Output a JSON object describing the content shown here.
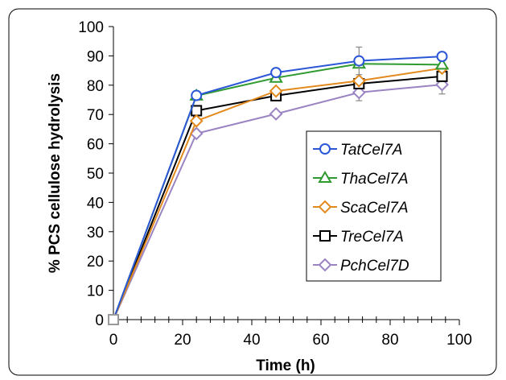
{
  "chart_data": {
    "type": "line",
    "xlabel": "Time (h)",
    "ylabel": "% PCS cellulose hydrolysis",
    "xlim": [
      0,
      100
    ],
    "ylim": [
      0,
      100
    ],
    "xticks": [
      "0",
      "20",
      "40",
      "60",
      "80",
      "100"
    ],
    "yticks": [
      "0",
      "10",
      "20",
      "30",
      "40",
      "50",
      "60",
      "70",
      "80",
      "90",
      "100"
    ],
    "x_minor_step": 4,
    "grid": false,
    "legend_position": "right",
    "series": [
      {
        "name": "TatCel7A",
        "color": "#2b56d6",
        "marker": "circle",
        "x": [
          0,
          24,
          47,
          71,
          95
        ],
        "y": [
          0,
          76.5,
          84.3,
          88.3,
          89.8
        ],
        "err": [
          0,
          0,
          0,
          4.7,
          0
        ]
      },
      {
        "name": "ThaCel7A",
        "color": "#2f9a2f",
        "marker": "triangle",
        "x": [
          0,
          24,
          47,
          71,
          95
        ],
        "y": [
          0,
          76.4,
          82.5,
          87.3,
          87.0
        ],
        "err": [
          0,
          0,
          0,
          0,
          0
        ]
      },
      {
        "name": "ScaCel7A",
        "color": "#e38a1e",
        "marker": "diamond",
        "x": [
          0,
          24,
          47,
          71,
          95
        ],
        "y": [
          0,
          67.8,
          78.0,
          81.5,
          85.8
        ],
        "err": [
          0,
          0,
          0,
          0,
          0
        ]
      },
      {
        "name": "TreCel7A",
        "color": "#000000",
        "marker": "square",
        "x": [
          0,
          24,
          47,
          71,
          95
        ],
        "y": [
          0,
          71.3,
          76.4,
          80.5,
          83.0
        ],
        "err": [
          0,
          0,
          0,
          0,
          0
        ]
      },
      {
        "name": "PchCel7D",
        "color": "#9a84c2",
        "marker": "diamond",
        "x": [
          0,
          24,
          47,
          71,
          95
        ],
        "y": [
          0,
          63.5,
          70.2,
          77.5,
          80.2
        ],
        "err": [
          0,
          0,
          0,
          2.8,
          3.2
        ]
      }
    ]
  }
}
